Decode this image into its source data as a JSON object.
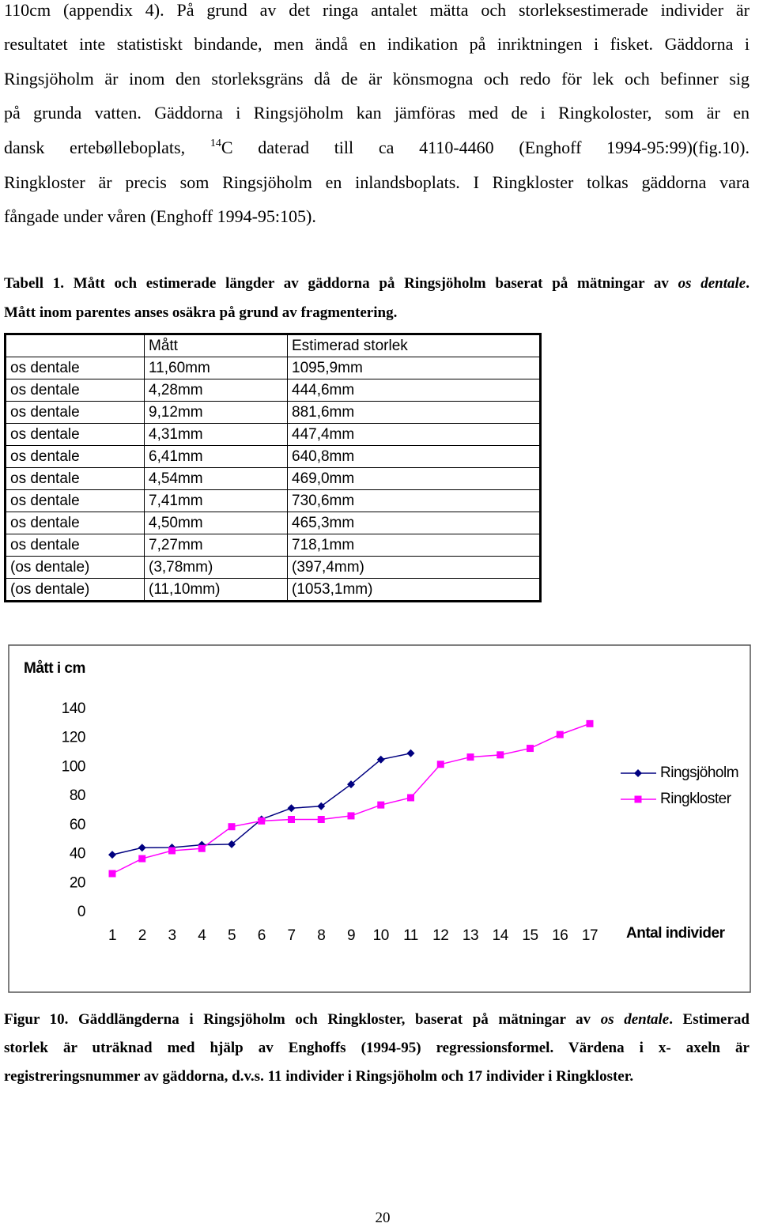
{
  "paragraph": {
    "lines": [
      [
        "110cm (appendix 4). På grund av det ringa antalet mätta och storleksestimerade individer är"
      ],
      [
        "resultatet inte statistiskt bindande, men ändå en indikation på inriktningen i fisket. Gäddorna i"
      ],
      [
        "Ringsjöholm är inom den storleksgräns då de är könsmogna och redo för lek och befinner sig"
      ],
      [
        "på grunda vatten. Gäddorna i Ringsjöholm kan jämföras med de i Ringkoloster, som är en"
      ],
      [
        "dansk ertebølleboplats, ",
        {
          "text": "14",
          "style": "sup"
        },
        "C daterad till ca 4110-4460 (Enghoff 1994-95:99)(fig.10)."
      ],
      [
        "Ringkloster är precis som Ringsjöholm en inlandsboplats. I Ringkloster tolkas gäddorna vara"
      ],
      [
        "fångade under våren (Enghoff 1994-95:105)."
      ]
    ]
  },
  "table_caption": {
    "lines": [
      [
        "Tabell 1. Mått och estimerade längder av gäddorna på Ringsjöholm baserat på mätningar av ",
        {
          "text": "os dentale",
          "style": "italic"
        },
        "."
      ],
      [
        "Mått inom parentes anses osäkra på grund av fragmentering."
      ]
    ]
  },
  "table": {
    "header": [
      "Mått",
      "Estimerad storlek"
    ],
    "rows": [
      [
        "os dentale",
        "11,60mm",
        "1095,9mm"
      ],
      [
        "os dentale",
        "4,28mm",
        "444,6mm"
      ],
      [
        "os dentale",
        "9,12mm",
        "881,6mm"
      ],
      [
        "os dentale",
        "4,31mm",
        "447,4mm"
      ],
      [
        "os dentale",
        "6,41mm",
        "640,8mm"
      ],
      [
        "os dentale",
        "4,54mm",
        "469,0mm"
      ],
      [
        "os dentale",
        "7,41mm",
        "730,6mm"
      ],
      [
        "os dentale",
        "4,50mm",
        "465,3mm"
      ],
      [
        "os dentale",
        "7,27mm",
        "718,1mm"
      ],
      [
        "(os dentale)",
        "(3,78mm)",
        "(397,4mm)"
      ],
      [
        "(os dentale)",
        "(11,10mm)",
        "(1053,1mm)"
      ]
    ]
  },
  "chart_data": {
    "type": "line",
    "y_label": "Mått i cm",
    "x_label": "Antal individer",
    "categories": [
      1,
      2,
      3,
      4,
      5,
      6,
      7,
      8,
      9,
      10,
      11,
      12,
      13,
      14,
      15,
      16,
      17
    ],
    "ylim": [
      0,
      140
    ],
    "yticks": [
      0,
      20,
      40,
      60,
      80,
      100,
      120,
      140
    ],
    "series": [
      {
        "name": "Ringsjöholm",
        "color": "#000080",
        "marker": "diamond",
        "values": [
          39.7,
          44.5,
          44.7,
          46.5,
          46.9,
          64.1,
          71.8,
          73.1,
          88.2,
          105.3,
          109.6,
          null,
          null,
          null,
          null,
          null,
          null
        ]
      },
      {
        "name": "Ringkloster",
        "color": "#ff00ff",
        "marker": "square",
        "values": [
          26.7,
          37,
          42.5,
          44,
          59,
          63,
          64,
          64,
          66.5,
          74,
          79,
          102,
          107,
          108.5,
          113,
          122.5,
          130
        ]
      }
    ]
  },
  "figure_caption": {
    "lines": [
      [
        "Figur 10. Gäddlängderna i Ringsjöholm och Ringkloster, baserat på mätningar av ",
        {
          "text": "os dentale",
          "style": "italic"
        },
        ". Estimerad"
      ],
      [
        "storlek är uträknad med hjälp av Enghoffs (1994-95) regressionsformel. Värdena i x- axeln är"
      ],
      [
        "registreringsnummer av gäddorna, d.v.s. 11 individer i Ringsjöholm och 17 individer i Ringkloster."
      ]
    ]
  },
  "page_number": "20"
}
